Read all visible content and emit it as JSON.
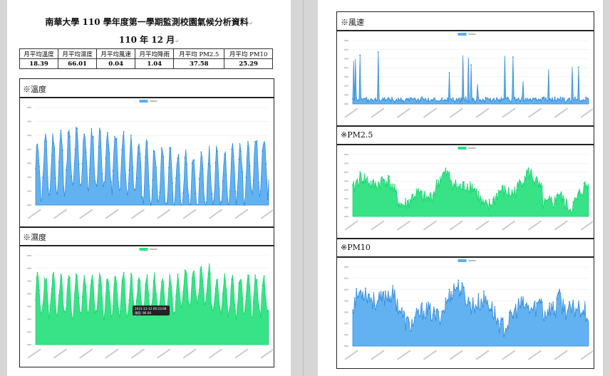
{
  "left_page": {
    "title": "南華大學 110 學年度第一學期監測校園氣候分析資料",
    "subtitle": "110 年 12 月",
    "summary_table": {
      "headers": [
        "月平均溫度",
        "月平均濕度",
        "月平均風速",
        "月平均降雨",
        "月平均 PM2.5",
        "月平均 PM10"
      ],
      "values": [
        "18.39",
        "66.01",
        "0.04",
        "1.04",
        "37.58",
        "25.29"
      ]
    },
    "sections": [
      {
        "label": "※溫度",
        "color": "#2e86d6",
        "fill": "#5aaef0",
        "legend": "溫度"
      },
      {
        "label": "※濕度",
        "color": "#16d46e",
        "fill": "#2de07f",
        "legend": "濕度",
        "tooltip": [
          "2021-12-12 06:23:08",
          "濕度: 86.00"
        ]
      }
    ]
  },
  "right_page": {
    "sections": [
      {
        "label": "※風速",
        "color": "#2e86d6",
        "fill": "#5aaef0",
        "legend": "風速"
      },
      {
        "label": "※PM2.5",
        "color": "#16d46e",
        "fill": "#2de07f",
        "legend": "PM2.5"
      },
      {
        "label": "※PM10",
        "color": "#2e86d6",
        "fill": "#5aaef0",
        "legend": "PM10"
      }
    ]
  },
  "colors": {
    "page": "#ffffff",
    "background": "#d6d6d6",
    "frame": "#222222"
  }
}
